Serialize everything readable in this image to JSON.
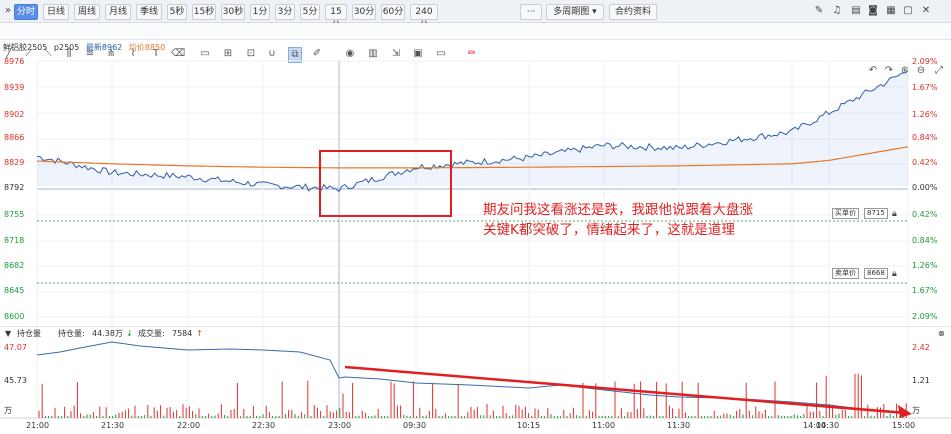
{
  "toolbar": {
    "collapse_icon": "double-chevron-right-icon",
    "periods": [
      "分时",
      "日线",
      "周线",
      "月线",
      "季线",
      "5秒",
      "15秒",
      "30秒",
      "1分",
      "3分",
      "5分",
      "15分",
      "30分",
      "60分",
      "240分"
    ],
    "more_label": "···",
    "multi_period_label": "多周期图",
    "contract_info_label": "合约资料",
    "right_icons": [
      "edit-icon",
      "bell-icon",
      "layers-icon",
      "camera-icon",
      "grid-icon",
      "window-icon",
      "close-icon"
    ]
  },
  "drawing_toolbar": {
    "icons": [
      "line-icon",
      "ray-icon",
      "segment-icon",
      "channel-icon",
      "fib-icon",
      "pitchfork-icon",
      "brush-icon",
      "text-icon",
      "eraser-icon",
      "magnet-icon",
      "copy-icon",
      "pen-icon",
      "eye-icon",
      "trash-icon",
      "export-icon",
      "image-icon",
      "comment-icon",
      "marker-icon"
    ],
    "zoom_icons": [
      "undo-icon",
      "redo-icon",
      "zoom-in-icon",
      "zoom-out-icon",
      "fullscreen-icon"
    ]
  },
  "legend": {
    "contract": "鲜铝胶2505",
    "code": "p2505",
    "latest_label": "最新",
    "latest_value": "8962",
    "avg_label": "均价",
    "avg_value": "8850"
  },
  "price_axis": [
    "8976",
    "8939",
    "8902",
    "8866",
    "8829",
    "8792",
    "8755",
    "8718",
    "8682",
    "8645",
    "8600"
  ],
  "pct_axis": [
    "2.09%",
    "1.67%",
    "1.26%",
    "0.84%",
    "0.42%",
    "0.00%",
    "0.42%",
    "0.84%",
    "1.26%",
    "1.67%",
    "2.09%"
  ],
  "order_tags": [
    {
      "side": "买单价",
      "price": "8715"
    },
    {
      "side": "卖单价",
      "price": "8668"
    }
  ],
  "annotation": {
    "line1": "期友问我这看涨还是跌，我跟他说跟着大盘涨",
    "line2": "关键K都突破了，情绪起来了，这就是道理"
  },
  "volume_bar": {
    "toggle_icon": "triangle-down-icon",
    "title": "持仓量",
    "oi_label": "持仓量:",
    "oi_value": "44.38万",
    "oi_dir": "down",
    "vol_label": "成交量:",
    "vol_value": "7584",
    "vol_dir": "up",
    "close_icon": "close-icon"
  },
  "volume_axis_left": [
    "47.07",
    "45.73",
    "万"
  ],
  "volume_axis_right": [
    "2.42",
    "1.21",
    "万"
  ],
  "time_axis": [
    "21:00",
    "21:30",
    "22:00",
    "22:30",
    "23:00",
    "09:30",
    "10:15",
    "11:00",
    "11:30",
    "14:00",
    "14:30",
    "15:00"
  ],
  "colors": {
    "up": "#e0302a",
    "down": "#1a9a3a",
    "price_line": "#2e5fa8",
    "avg_line": "#e27a2a",
    "annotation": "#e02020",
    "active_tab": "#5b8ee6"
  },
  "chart_data": {
    "type": "line",
    "x": [
      "21:00",
      "21:30",
      "22:00",
      "22:30",
      "23:00",
      "09:30",
      "10:15",
      "11:00",
      "11:30",
      "14:00",
      "14:30",
      "15:00"
    ],
    "series": [
      {
        "values": [
          8836,
          8812,
          8806,
          8794,
          8788,
          8820,
          8834,
          8852,
          8848,
          8872,
          8900,
          8962
        ]
      },
      {
        "values": [
          8829,
          8825,
          8822,
          8820,
          8819,
          8819,
          8820,
          8821,
          8822,
          8825,
          8830,
          8850
        ]
      }
    ],
    "ylim": [
      8600,
      8976
    ]
  }
}
